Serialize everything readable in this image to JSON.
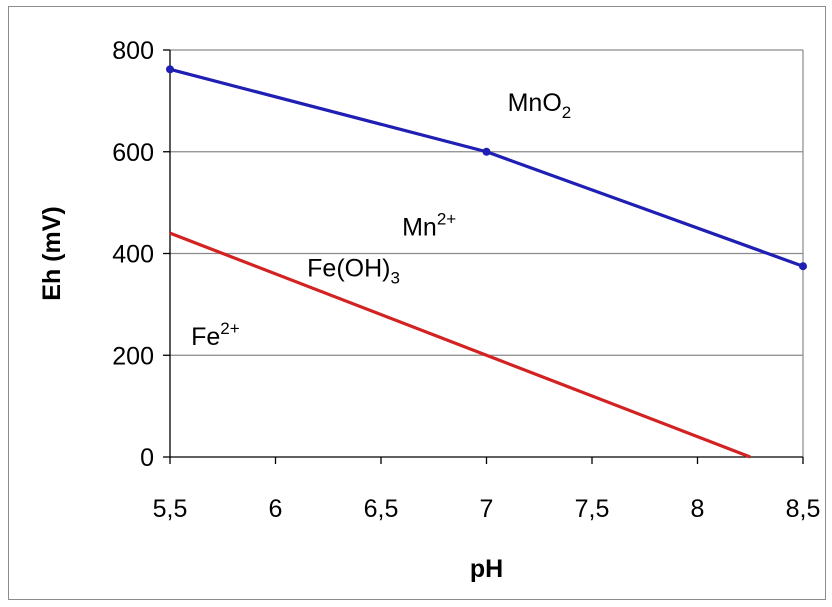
{
  "chart_data": {
    "type": "line",
    "xlabel": "pH",
    "ylabel": "Eh (mV)",
    "xlim": [
      5.5,
      8.5
    ],
    "ylim": [
      0,
      800
    ],
    "x_ticks": [
      "5,5",
      "6",
      "6,5",
      "7",
      "7,5",
      "8",
      "8,5"
    ],
    "x_tick_values": [
      5.5,
      6,
      6.5,
      7,
      7.5,
      8,
      8.5
    ],
    "y_ticks": [
      "0",
      "200",
      "400",
      "600",
      "800"
    ],
    "y_tick_values": [
      0,
      200,
      400,
      600,
      800
    ],
    "grid": "horizontal",
    "series": [
      {
        "color": "#1f1fb4",
        "markers": true,
        "points": [
          [
            5.5,
            762
          ],
          [
            7,
            600
          ],
          [
            8.5,
            375
          ]
        ]
      },
      {
        "color": "#d22222",
        "markers": false,
        "points": [
          [
            5.5,
            440
          ],
          [
            7,
            200
          ],
          [
            8.25,
            0
          ]
        ]
      }
    ],
    "annotations": [
      {
        "id": "mno2",
        "base": "MnO",
        "sub": "2",
        "x": 7.1,
        "y": 680
      },
      {
        "id": "mn2",
        "base": "Mn",
        "sup": "2+",
        "x": 6.6,
        "y": 435
      },
      {
        "id": "feoh3",
        "base": "Fe(OH)",
        "sub": "3",
        "x": 6.15,
        "y": 355
      },
      {
        "id": "fe2",
        "base": "Fe",
        "sup": "2+",
        "x": 5.6,
        "y": 220
      }
    ]
  }
}
